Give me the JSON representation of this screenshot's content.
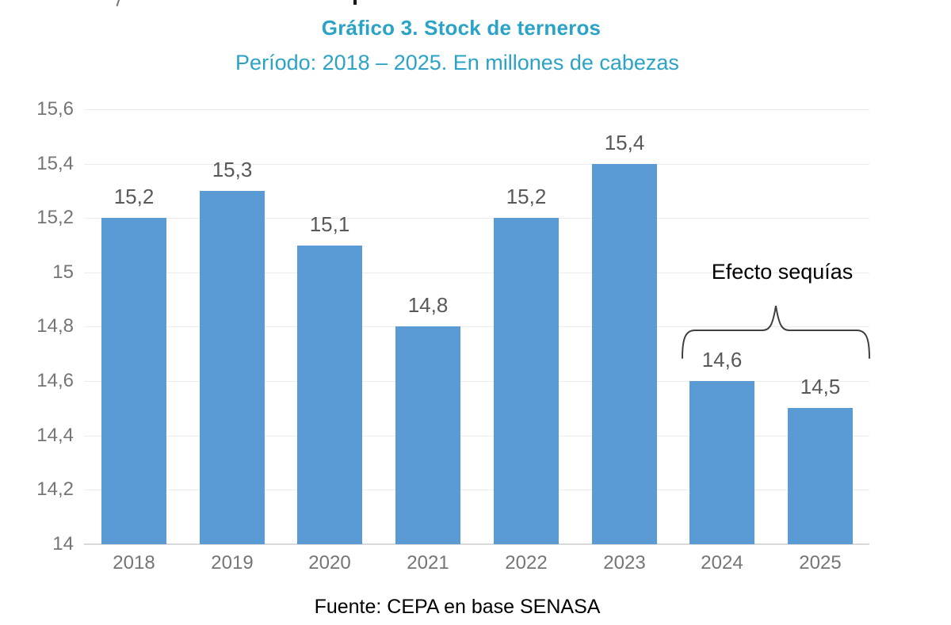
{
  "colors": {
    "title": "#2BA3C6",
    "subtitle": "#2BA3C6",
    "bar": "#5B9BD5",
    "axis_label": "#757575",
    "data_label": "#595959",
    "gridline": "#ECECEC",
    "axis_line": "#D9D9D9",
    "annotation_text": "#000000",
    "source_text": "#000000",
    "brace": "#404040"
  },
  "chart_data": {
    "type": "bar",
    "title": "Gráfico 3. Stock de terneros",
    "subtitle": "Período: 2018 – 2025. En millones de cabezas",
    "categories": [
      "2018",
      "2019",
      "2020",
      "2021",
      "2022",
      "2023",
      "2024",
      "2025"
    ],
    "values": [
      15.2,
      15.3,
      15.1,
      14.8,
      15.2,
      15.4,
      14.6,
      14.5
    ],
    "data_labels": [
      "15,2",
      "15,3",
      "15,1",
      "14,8",
      "15,2",
      "15,4",
      "14,6",
      "14,5"
    ],
    "xlabel": "",
    "ylabel": "",
    "ylim": [
      14,
      15.6
    ],
    "ytick_values": [
      14,
      14.2,
      14.4,
      14.6,
      14.8,
      15,
      15.2,
      15.4,
      15.6
    ],
    "ytick_labels": [
      "14",
      "14,2",
      "14,4",
      "14,6",
      "14,8",
      "15",
      "15,2",
      "15,4",
      "15,6"
    ],
    "grid": true,
    "legend": "none",
    "decimal_separator": "comma",
    "annotation": {
      "text": "Efecto sequías",
      "applies_to": [
        "2024",
        "2025"
      ]
    },
    "source": "Fuente: CEPA en base SENASA"
  }
}
